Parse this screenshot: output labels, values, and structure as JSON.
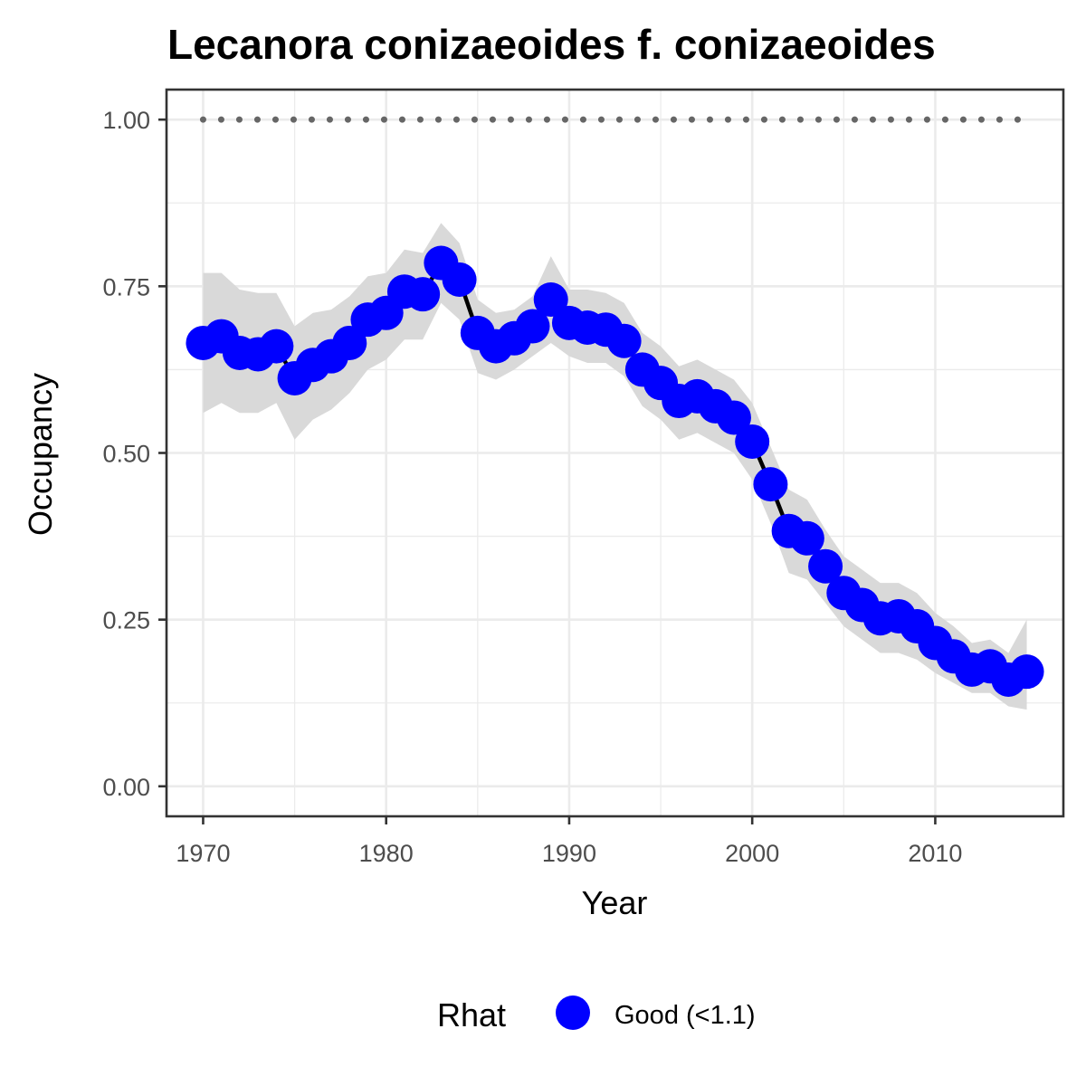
{
  "chart_data": {
    "type": "line",
    "title": "Lecanora conizaeoides f. conizaeoides",
    "xlabel": "Year",
    "ylabel": "Occupancy",
    "xlim": [
      1968,
      2017
    ],
    "ylim": [
      -0.045,
      1.045
    ],
    "x_ticks": [
      1970,
      1980,
      1990,
      2000,
      2010
    ],
    "x_tick_labels": [
      "1970",
      "1980",
      "1990",
      "2000",
      "2010"
    ],
    "y_ticks": [
      0,
      0.25,
      0.5,
      0.75,
      1.0
    ],
    "y_tick_labels": [
      "0.00",
      "0.25",
      "0.50",
      "0.75",
      "1.00"
    ],
    "grid": true,
    "legend": {
      "title": "Rhat",
      "placement": "bottom",
      "entries": [
        {
          "label": "Good (<1.1)",
          "color": "#0000ff"
        }
      ]
    },
    "colors": {
      "points": "#0000ff",
      "line": "#000000",
      "ribbon": "#d9d9d9",
      "reference": "#666666"
    },
    "reference_line": {
      "y": 1.0,
      "style": "dotted"
    },
    "series": [
      {
        "x": [
          1970,
          1971,
          1972,
          1973,
          1974,
          1975,
          1976,
          1977,
          1978,
          1979,
          1980,
          1981,
          1982,
          1983,
          1984,
          1985,
          1986,
          1987,
          1988,
          1989,
          1990,
          1991,
          1992,
          1993,
          1994,
          1995,
          1996,
          1997,
          1998,
          1999,
          2000,
          2001,
          2002,
          2003,
          2004,
          2005,
          2006,
          2007,
          2008,
          2009,
          2010,
          2011,
          2012,
          2013,
          2014,
          2015
        ],
        "values": [
          0.665,
          0.675,
          0.65,
          0.648,
          0.66,
          0.612,
          0.632,
          0.645,
          0.665,
          0.7,
          0.71,
          0.742,
          0.738,
          0.785,
          0.76,
          0.68,
          0.66,
          0.672,
          0.69,
          0.73,
          0.695,
          0.688,
          0.685,
          0.668,
          0.625,
          0.605,
          0.578,
          0.585,
          0.57,
          0.553,
          0.517,
          0.453,
          0.383,
          0.372,
          0.33,
          0.29,
          0.272,
          0.252,
          0.255,
          0.24,
          0.215,
          0.195,
          0.175,
          0.18,
          0.16,
          0.172
        ],
        "lower": [
          0.56,
          0.575,
          0.56,
          0.56,
          0.575,
          0.52,
          0.55,
          0.565,
          0.59,
          0.625,
          0.64,
          0.67,
          0.67,
          0.725,
          0.7,
          0.62,
          0.61,
          0.625,
          0.645,
          0.665,
          0.645,
          0.635,
          0.635,
          0.615,
          0.57,
          0.55,
          0.52,
          0.53,
          0.515,
          0.5,
          0.46,
          0.395,
          0.32,
          0.31,
          0.275,
          0.24,
          0.22,
          0.2,
          0.2,
          0.19,
          0.17,
          0.155,
          0.14,
          0.14,
          0.12,
          0.115
        ],
        "upper": [
          0.77,
          0.77,
          0.745,
          0.74,
          0.74,
          0.69,
          0.71,
          0.715,
          0.735,
          0.765,
          0.77,
          0.805,
          0.8,
          0.845,
          0.815,
          0.73,
          0.71,
          0.715,
          0.735,
          0.795,
          0.745,
          0.745,
          0.74,
          0.725,
          0.68,
          0.66,
          0.63,
          0.64,
          0.625,
          0.61,
          0.575,
          0.51,
          0.445,
          0.43,
          0.385,
          0.345,
          0.325,
          0.305,
          0.305,
          0.29,
          0.26,
          0.24,
          0.215,
          0.22,
          0.2,
          0.25
        ]
      }
    ]
  }
}
